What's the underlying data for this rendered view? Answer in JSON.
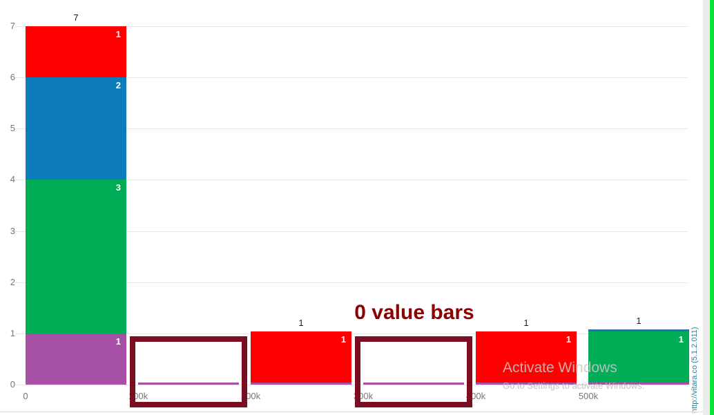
{
  "chart_data": {
    "type": "bar",
    "stacked": true,
    "title": "",
    "xlabel": "",
    "ylabel": "",
    "ylim": [
      0,
      7
    ],
    "grid": true,
    "legend": "none",
    "y_ticks": [
      0,
      1,
      2,
      3,
      4,
      5,
      6,
      7
    ],
    "x_tick_labels": [
      "0",
      "100k",
      "200k",
      "300k",
      "400k",
      "500k"
    ],
    "series_colors": {
      "red": "#ff0000",
      "blue": "#0d7cbd",
      "green": "#00ac55",
      "purple": "#a650a6"
    },
    "bins": [
      {
        "range": "0-100k",
        "total": 7,
        "segments": [
          {
            "series": "purple",
            "value": 1
          },
          {
            "series": "green",
            "value": 3
          },
          {
            "series": "blue",
            "value": 2
          },
          {
            "series": "red",
            "value": 1
          }
        ]
      },
      {
        "range": "100k-200k",
        "total": 0,
        "segments": [
          {
            "series": "purple",
            "value": 0
          }
        ]
      },
      {
        "range": "200k-300k",
        "total": 1,
        "segments": [
          {
            "series": "purple",
            "value": 0
          },
          {
            "series": "red",
            "value": 1
          }
        ]
      },
      {
        "range": "300k-400k",
        "total": 0,
        "segments": [
          {
            "series": "purple",
            "value": 0
          }
        ]
      },
      {
        "range": "400k-500k",
        "total": 1,
        "segments": [
          {
            "series": "purple",
            "value": 0
          },
          {
            "series": "red",
            "value": 1
          }
        ]
      },
      {
        "range": "500k-600k",
        "total": 1,
        "segments": [
          {
            "series": "purple",
            "value": 0
          },
          {
            "series": "green",
            "value": 1
          },
          {
            "series": "blue",
            "value": 0
          }
        ]
      }
    ]
  },
  "annotation": {
    "label": "0 value bars",
    "color": "#8b0000",
    "box_color": "#7c0e24",
    "highlighted_bins": [
      1,
      3
    ]
  },
  "watermark": {
    "line1": "Activate Windows",
    "line2": "Go to Settings to activate Windows."
  },
  "branding": {
    "vertical_text": "http://vitara.co  (5.1.2.011)"
  }
}
